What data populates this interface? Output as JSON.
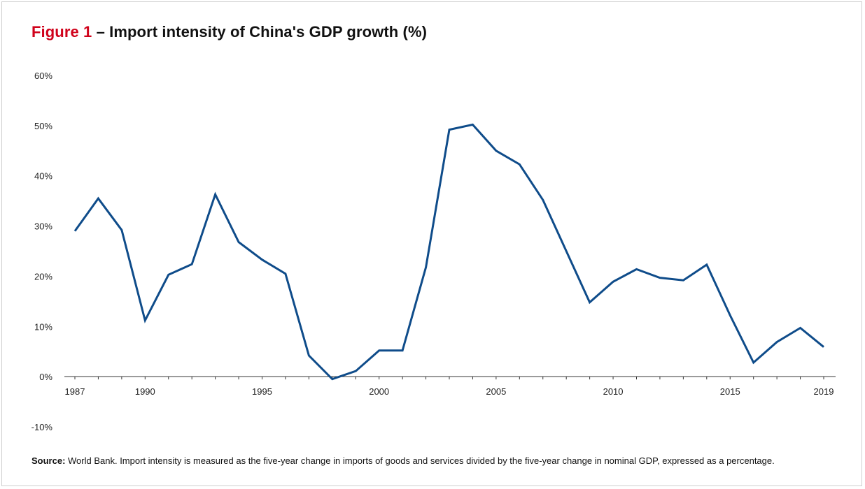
{
  "title": {
    "figure_label": "Figure 1",
    "text": " – Import intensity of China's GDP growth (%)"
  },
  "source": {
    "label": "Source:",
    "text": " World Bank. Import intensity is measured as the five-year change in imports of goods and services divided by the five-year change in nominal GDP, expressed as a percentage."
  },
  "colors": {
    "figure_label": "#d0021b",
    "line": "#0f4c8a",
    "axis": "#333333"
  },
  "chart_data": {
    "type": "line",
    "title": "Import intensity of China's GDP growth (%)",
    "xlabel": "",
    "ylabel": "",
    "ylim": [
      -10,
      60
    ],
    "xlim": [
      1987,
      2019
    ],
    "grid": false,
    "y_ticks": [
      60,
      50,
      40,
      30,
      20,
      10,
      0,
      -10
    ],
    "y_tick_labels": [
      "60%",
      "50%",
      "40%",
      "30%",
      "20%",
      "10%",
      "0%",
      "-10%"
    ],
    "x_ticks": [
      1987,
      1990,
      1995,
      2000,
      2005,
      2010,
      2015,
      2019
    ],
    "x_tick_labels": [
      "1987",
      "1990",
      "1995",
      "2000",
      "2005",
      "2010",
      "2015",
      "2019"
    ],
    "series": [
      {
        "x": [
          1987,
          1988,
          1989,
          1990,
          1991,
          1992,
          1993,
          1994,
          1995,
          1996,
          1997,
          1998,
          1999,
          2000,
          2001,
          2002,
          2003,
          2004,
          2005,
          2006,
          2007,
          2008,
          2009,
          2010,
          2011,
          2012,
          2013,
          2014,
          2015,
          2016,
          2017,
          2018,
          2019
        ],
        "values": [
          29.0,
          35.5,
          29.2,
          11.2,
          20.3,
          22.4,
          36.3,
          26.8,
          23.3,
          20.5,
          4.2,
          -0.5,
          1.1,
          5.2,
          5.2,
          21.8,
          49.2,
          50.2,
          45.0,
          42.3,
          35.2,
          25.0,
          14.8,
          18.9,
          21.4,
          19.7,
          19.2,
          22.3,
          12.2,
          2.8,
          6.9,
          9.7,
          5.9
        ]
      }
    ]
  }
}
